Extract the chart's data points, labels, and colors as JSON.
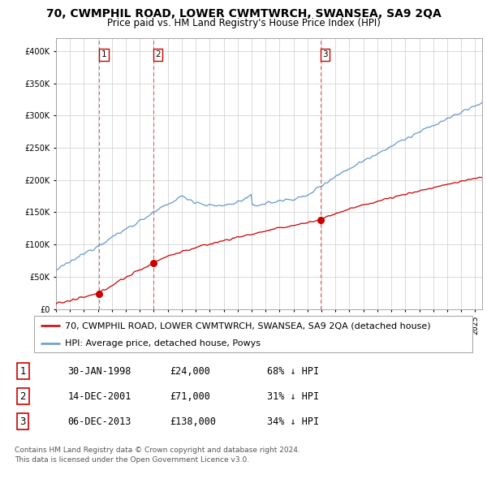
{
  "title": "70, CWMPHIL ROAD, LOWER CWMTWRCH, SWANSEA, SA9 2QA",
  "subtitle": "Price paid vs. HM Land Registry's House Price Index (HPI)",
  "ylim": [
    0,
    420000
  ],
  "yticks": [
    0,
    50000,
    100000,
    150000,
    200000,
    250000,
    300000,
    350000,
    400000
  ],
  "xlim_start": 1995.0,
  "xlim_end": 2025.5,
  "legend_red_label": "70, CWMPHIL ROAD, LOWER CWMTWRCH, SWANSEA, SA9 2QA (detached house)",
  "legend_blue_label": "HPI: Average price, detached house, Powys",
  "sale_dates": [
    1998.08,
    2001.95,
    2013.92
  ],
  "sale_prices": [
    24000,
    71000,
    138000
  ],
  "sale_labels": [
    "1",
    "2",
    "3"
  ],
  "vline_dates": [
    1998.08,
    2001.95,
    2013.92
  ],
  "footer_line1": "Contains HM Land Registry data © Crown copyright and database right 2024.",
  "footer_line2": "This data is licensed under the Open Government Licence v3.0.",
  "table_rows": [
    [
      "1",
      "30-JAN-1998",
      "£24,000",
      "68% ↓ HPI"
    ],
    [
      "2",
      "14-DEC-2001",
      "£71,000",
      "31% ↓ HPI"
    ],
    [
      "3",
      "06-DEC-2013",
      "£138,000",
      "34% ↓ HPI"
    ]
  ],
  "red_color": "#cc0000",
  "blue_color": "#6699cc",
  "vline_color": "#cc0000",
  "grid_color": "#cccccc",
  "background_color": "#ffffff",
  "title_fontsize": 10,
  "subtitle_fontsize": 8.5,
  "tick_fontsize": 7,
  "legend_fontsize": 8,
  "table_fontsize": 8.5,
  "footer_fontsize": 6.5
}
